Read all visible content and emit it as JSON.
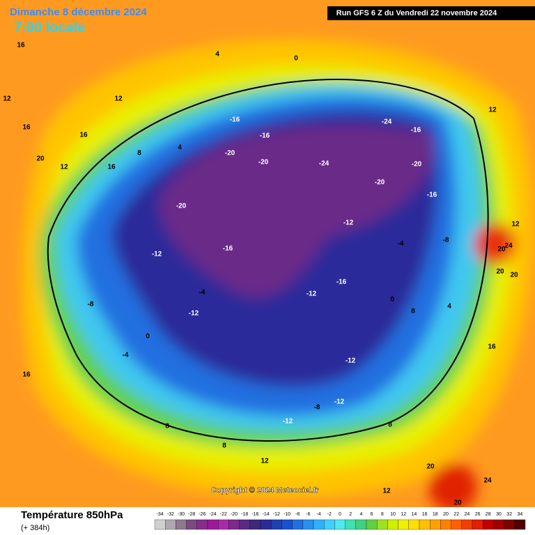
{
  "header": {
    "date": "Dimanche 8 décembre 2024",
    "time": "7:00 locale",
    "run": "Run GFS 6 Z du Vendredi 22 novembre 2024"
  },
  "copyright": "Copyright © 2024 Meteociel.fr",
  "footer": {
    "title": "Température 850hPa",
    "lead": "(+ 384h)"
  },
  "legend": {
    "values": [
      -34,
      -32,
      -30,
      -28,
      -26,
      -24,
      -22,
      -20,
      -18,
      -16,
      -14,
      -12,
      -10,
      -8,
      -6,
      -4,
      -2,
      0,
      2,
      4,
      6,
      8,
      10,
      12,
      14,
      16,
      18,
      20,
      22,
      24,
      26,
      28,
      30,
      32,
      34
    ],
    "colors": [
      "#d0d0d0",
      "#b0a8b0",
      "#907890",
      "#7a4a80",
      "#8a2a8a",
      "#9a1a9a",
      "#a82aa8",
      "#7a2a8a",
      "#5a2a80",
      "#3a2a7a",
      "#2a2a9a",
      "#2040b0",
      "#1a50d0",
      "#2070e0",
      "#2a90f0",
      "#30b0f8",
      "#40d0ff",
      "#50e8f0",
      "#40e0b0",
      "#40d080",
      "#60d040",
      "#a0e020",
      "#d0f000",
      "#f0f000",
      "#ffe000",
      "#ffc000",
      "#ffa000",
      "#ff8000",
      "#ff6000",
      "#f04000",
      "#e02000",
      "#c00000",
      "#a00000",
      "#800000",
      "#500000"
    ]
  },
  "contour_labels": [
    16,
    16,
    12,
    12,
    16,
    20,
    12,
    16,
    4,
    0,
    4,
    8,
    12,
    20,
    20,
    24,
    20,
    12,
    -16,
    -16,
    -20,
    -24,
    -20,
    -20,
    -24,
    -20,
    -16,
    -20,
    -16,
    -12,
    -16,
    -12,
    -12,
    -16,
    -8,
    -8,
    -4,
    -4,
    0,
    0,
    -4,
    -12,
    -8,
    -12,
    -12,
    -12,
    8,
    8,
    8,
    12,
    12,
    16,
    16,
    20,
    20,
    24,
    4,
    8
  ]
}
